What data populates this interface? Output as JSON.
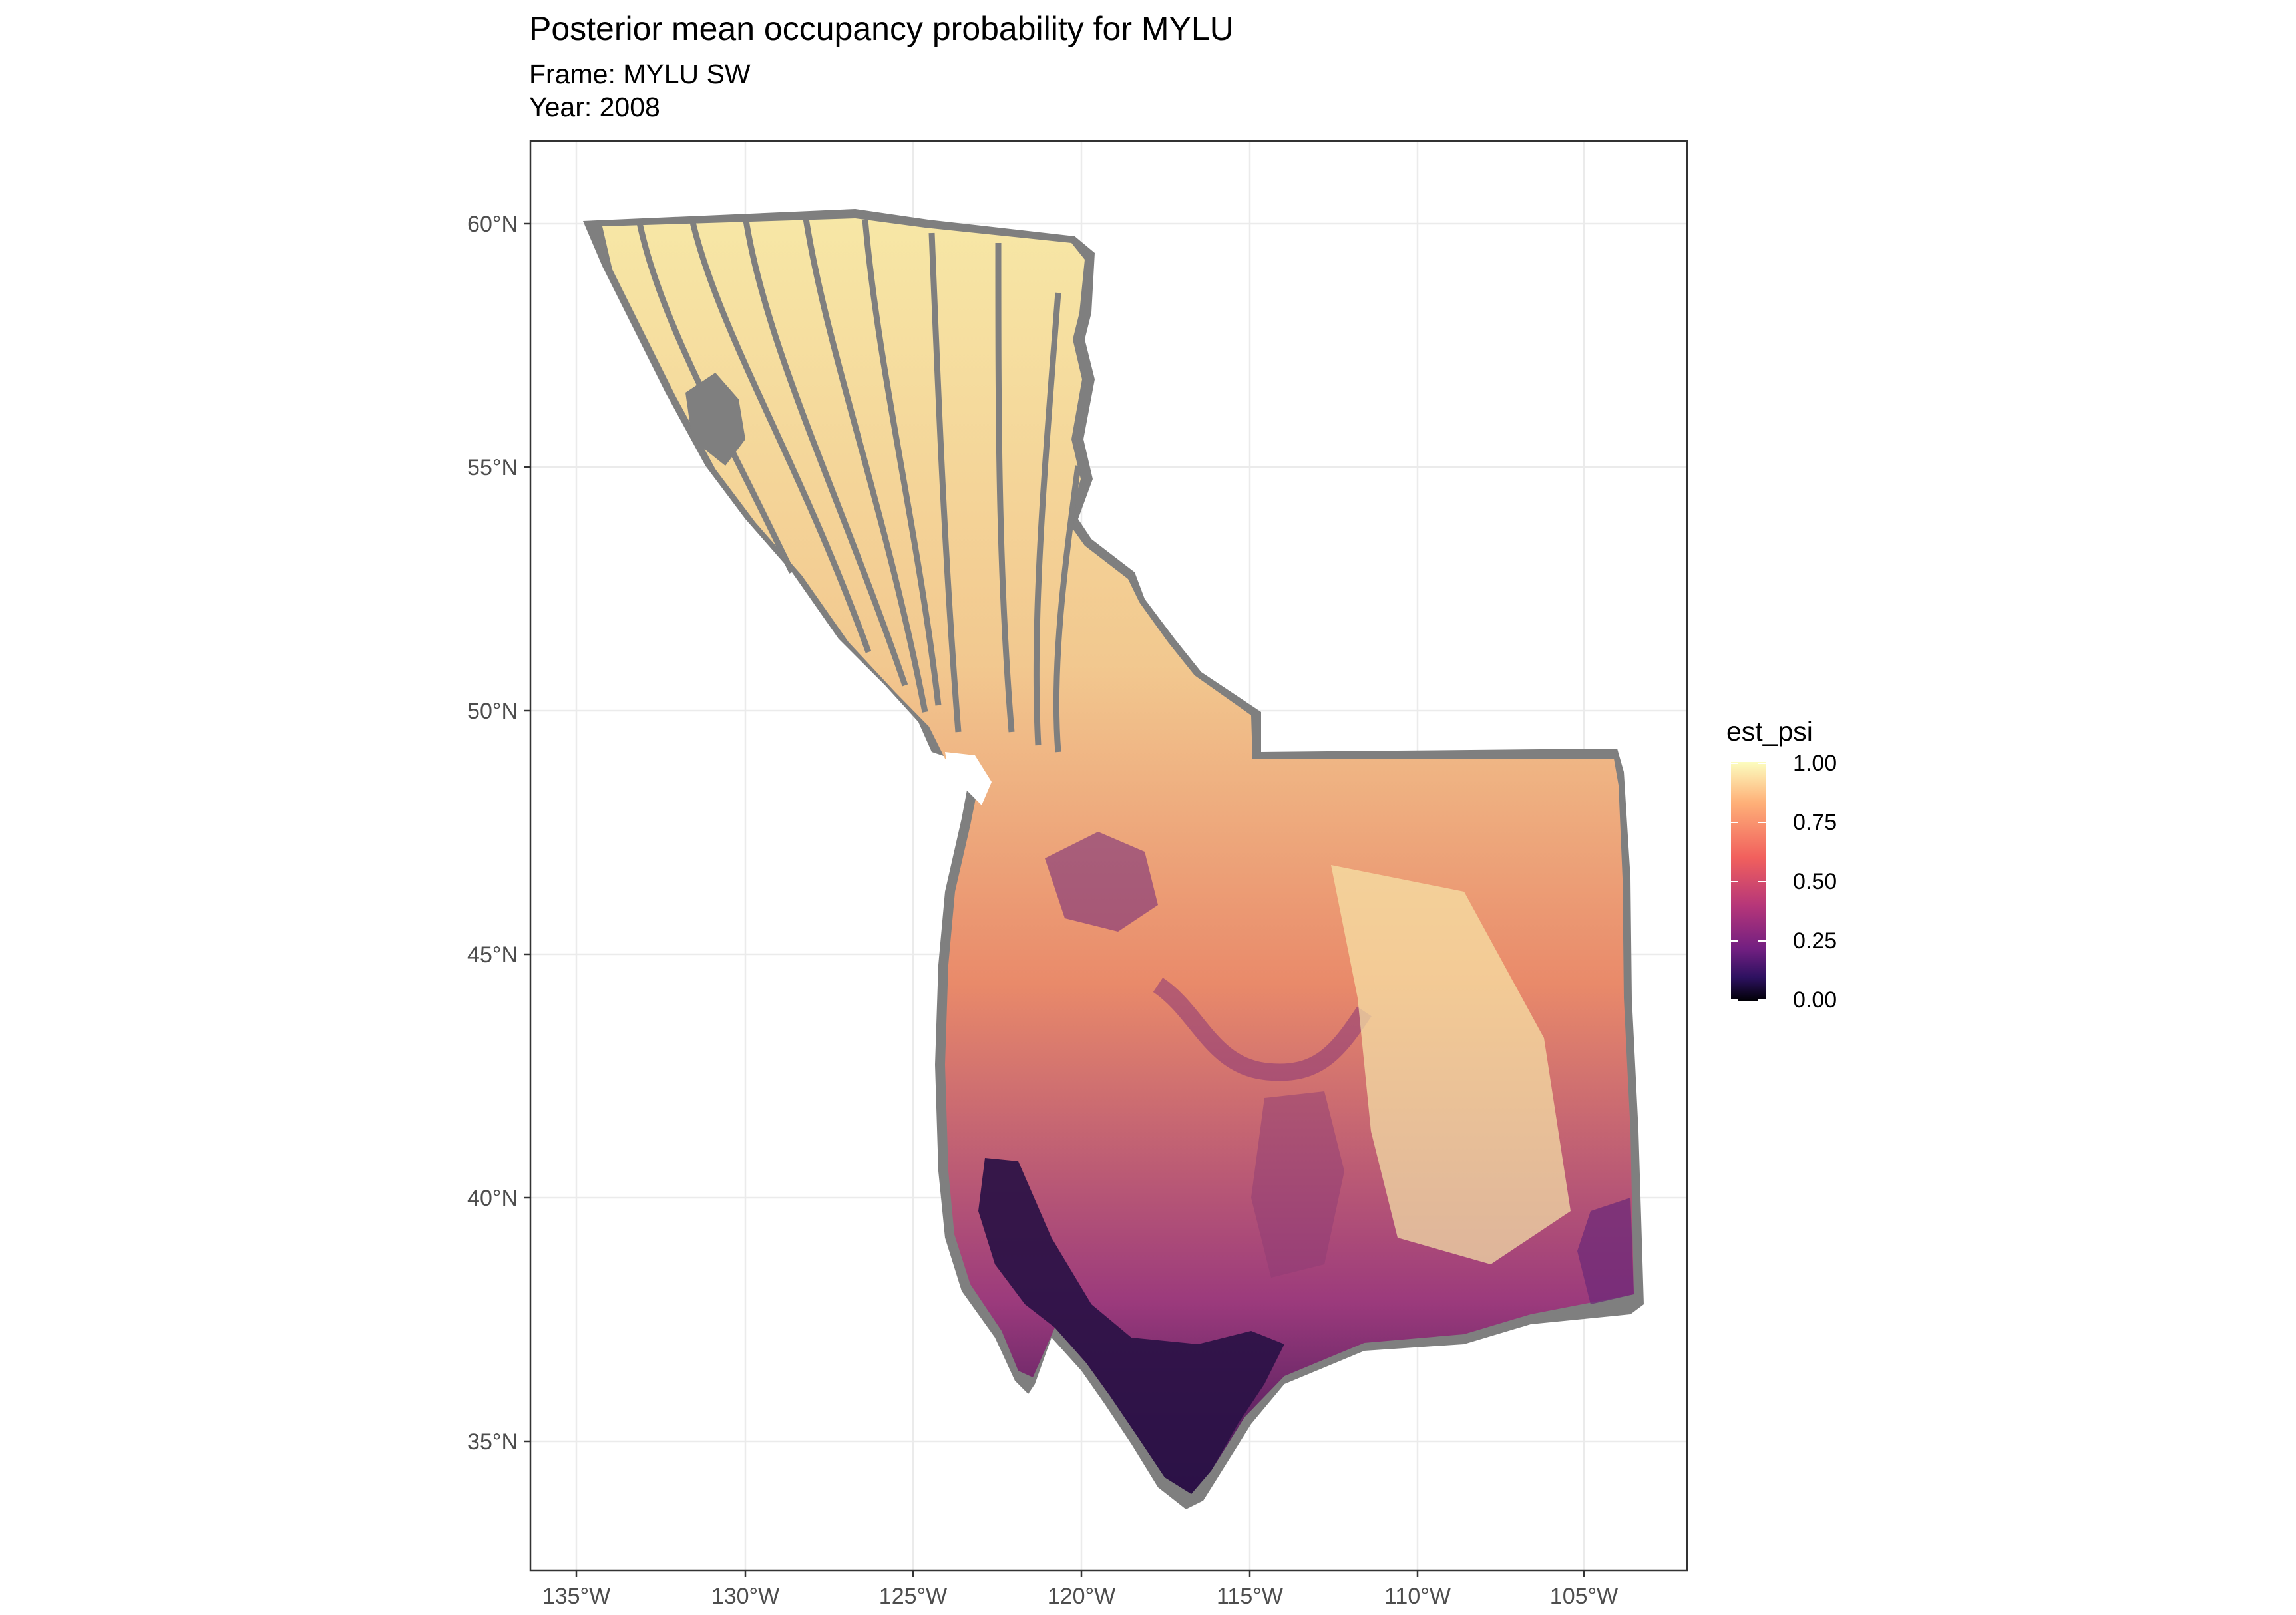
{
  "title": "Posterior mean occupancy probability for MYLU",
  "subtitle": {
    "frame": "Frame: MYLU SW",
    "year": "Year: 2008"
  },
  "legend": {
    "title": "est_psi",
    "labels": [
      "1.00",
      "0.75",
      "0.50",
      "0.25",
      "0.00"
    ],
    "colors": [
      "#FCFDBF",
      "#FEB078",
      "#F1605D",
      "#B63679",
      "#721F81",
      "#2D1160",
      "#000004"
    ]
  },
  "axes": {
    "x_ticks": [
      "135°W",
      "130°W",
      "125°W",
      "120°W",
      "115°W",
      "110°W",
      "105°W"
    ],
    "y_ticks": [
      "60°N",
      "55°N",
      "50°N",
      "45°N",
      "40°N",
      "35°N"
    ],
    "lon_range": [
      -136.4,
      -101.6
    ],
    "lat_range": [
      32.1,
      61.7
    ]
  },
  "colors": {
    "panel_border": "#333333",
    "grid": "#ebebeb",
    "missing": "#7f7f7f"
  }
}
